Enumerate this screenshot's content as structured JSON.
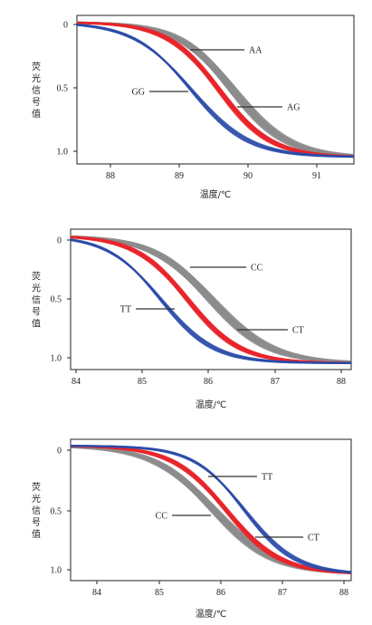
{
  "chart_data": [
    {
      "type": "line",
      "xlabel": "温度/℃",
      "ylabel": "荧光信号值",
      "xlim": [
        87.5,
        91.5
      ],
      "ylim": [
        -0.05,
        1.05
      ],
      "x_ticks": [
        "88",
        "89",
        "90",
        "91"
      ],
      "y_ticks": [
        "0",
        "0.5",
        "1.0"
      ],
      "grid": false,
      "series": [
        {
          "name": "AA",
          "color": "#8c8c8c",
          "midpoint": 89.75,
          "width": 0.4,
          "replicates": 12,
          "spread": 0.12
        },
        {
          "name": "AG",
          "color": "#e8262b",
          "midpoint": 89.55,
          "width": 0.38,
          "replicates": 8,
          "spread": 0.06
        },
        {
          "name": "GG",
          "color": "#2a4aa8",
          "midpoint": 89.15,
          "width": 0.42,
          "replicates": 3,
          "spread": 0.03
        }
      ],
      "annotations": [
        {
          "label": "AA",
          "x": 89.8,
          "y": 0.81
        },
        {
          "label": "AG",
          "x": 90.05,
          "y": 0.34
        },
        {
          "label": "GG",
          "x": 89.05,
          "y": 0.47
        }
      ]
    },
    {
      "type": "line",
      "xlabel": "温度/℃",
      "ylabel": "荧光信号值",
      "xlim": [
        84,
        88.2
      ],
      "ylim": [
        -0.05,
        1.05
      ],
      "x_ticks": [
        "84",
        "85",
        "86",
        "87",
        "88"
      ],
      "y_ticks": [
        "0",
        "0.5",
        "1.0"
      ],
      "grid": false,
      "series": [
        {
          "name": "CC",
          "color": "#8c8c8c",
          "midpoint": 86.1,
          "width": 0.45,
          "replicates": 12,
          "spread": 0.13
        },
        {
          "name": "CT",
          "color": "#e8262b",
          "midpoint": 85.75,
          "width": 0.4,
          "replicates": 8,
          "spread": 0.06
        },
        {
          "name": "TT",
          "color": "#2a4aa8",
          "midpoint": 85.35,
          "width": 0.4,
          "replicates": 3,
          "spread": 0.03
        }
      ],
      "annotations": [
        {
          "label": "CC",
          "x": 86.0,
          "y": 0.77
        },
        {
          "label": "CT",
          "x": 86.4,
          "y": 0.23
        },
        {
          "label": "TT",
          "x": 85.5,
          "y": 0.42
        }
      ]
    },
    {
      "type": "line",
      "xlabel": "温度/℃",
      "ylabel": "荧光信号值",
      "xlim": [
        83.6,
        88.2
      ],
      "ylim": [
        -0.05,
        1.05
      ],
      "x_ticks": [
        "84",
        "85",
        "86",
        "87",
        "88"
      ],
      "y_ticks": [
        "0",
        "0.5",
        "1.0"
      ],
      "grid": false,
      "series": [
        {
          "name": "CC",
          "color": "#8c8c8c",
          "midpoint": 85.95,
          "width": 0.5,
          "replicates": 12,
          "spread": 0.13
        },
        {
          "name": "CT",
          "color": "#e8262b",
          "midpoint": 86.15,
          "width": 0.45,
          "replicates": 8,
          "spread": 0.06
        },
        {
          "name": "TT",
          "color": "#2a4aa8",
          "midpoint": 86.45,
          "width": 0.42,
          "replicates": 3,
          "spread": 0.03
        }
      ],
      "annotations": [
        {
          "label": "TT",
          "x": 86.2,
          "y": 0.77
        },
        {
          "label": "CT",
          "x": 86.6,
          "y": 0.26
        },
        {
          "label": "CC",
          "x": 86.3,
          "y": 0.47
        }
      ]
    }
  ]
}
